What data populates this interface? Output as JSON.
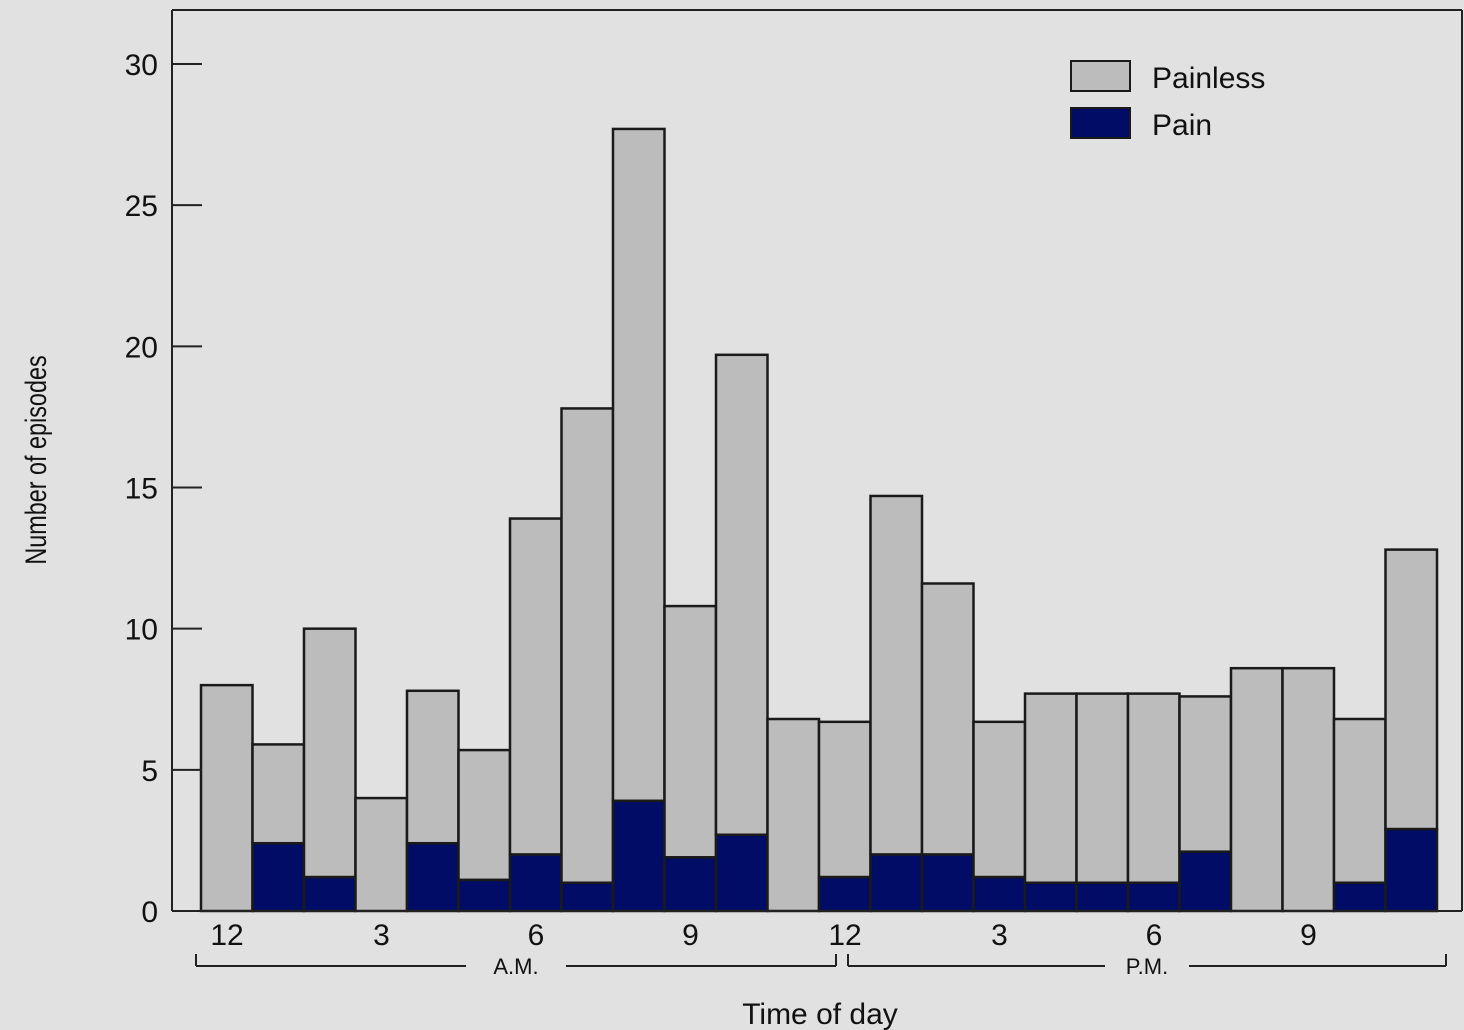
{
  "chart_data": {
    "type": "bar",
    "stacked": true,
    "ylabel": "Number of episodes",
    "xlabel": "Time of day",
    "ylim": [
      0,
      30
    ],
    "yticks": [
      0,
      5,
      10,
      15,
      20,
      25,
      30
    ],
    "bins": 24,
    "xtick_labels": [
      {
        "bin": 0,
        "label": "12"
      },
      {
        "bin": 3,
        "label": "3"
      },
      {
        "bin": 6,
        "label": "6"
      },
      {
        "bin": 9,
        "label": "9"
      },
      {
        "bin": 12,
        "label": "12"
      },
      {
        "bin": 15,
        "label": "3"
      },
      {
        "bin": 18,
        "label": "6"
      },
      {
        "bin": 21,
        "label": "9"
      }
    ],
    "periods": [
      {
        "label": "A.M.",
        "start_bin": 0,
        "end_bin": 12
      },
      {
        "label": "P.M.",
        "start_bin": 12,
        "end_bin": 24
      }
    ],
    "series": [
      {
        "name": "Painless",
        "color": "#bcbcbc",
        "values": [
          8.0,
          3.5,
          8.8,
          4.0,
          5.4,
          4.6,
          11.9,
          16.8,
          23.8,
          8.9,
          17.0,
          6.8,
          5.5,
          12.7,
          9.6,
          5.5,
          6.7,
          6.7,
          6.7,
          5.5,
          8.6,
          8.6,
          5.8,
          9.9
        ]
      },
      {
        "name": "Pain",
        "color": "#000c66",
        "values": [
          0,
          2.4,
          1.2,
          0,
          2.4,
          1.1,
          2.0,
          1.0,
          3.9,
          1.9,
          2.7,
          0,
          1.2,
          2.0,
          2.0,
          1.2,
          1.0,
          1.0,
          1.0,
          2.1,
          0,
          0,
          1.0,
          2.9
        ]
      }
    ],
    "legend": {
      "position": "top-right"
    }
  }
}
